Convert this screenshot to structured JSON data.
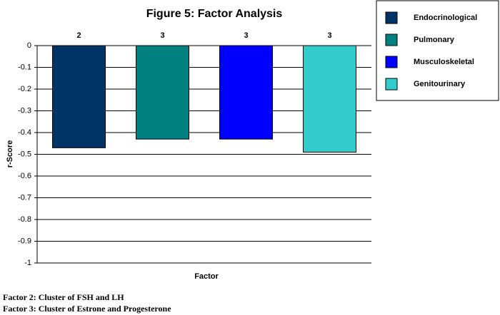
{
  "chart_data": {
    "type": "bar",
    "title": "Figure 5: Factor Analysis",
    "x_label": "Factor",
    "y_label": "r-Score",
    "categories": [
      null
    ],
    "series": [
      {
        "name": "Endocrinological",
        "color": "#003366",
        "values": [
          -0.47
        ]
      },
      {
        "name": "Pulmonary",
        "color": "#008080",
        "values": [
          -0.43
        ]
      },
      {
        "name": "Musculoskeletal",
        "color": "#0000ff",
        "values": [
          -0.43
        ]
      },
      {
        "name": "Genitourinary",
        "color": "#33cccc",
        "values": [
          -0.49
        ]
      }
    ],
    "bar_labels": [
      "2",
      "3",
      "3",
      "3"
    ],
    "ylim": [
      -1,
      0
    ],
    "yticks": [
      0,
      -0.1,
      -0.2,
      -0.3,
      -0.4,
      -0.5,
      -0.6,
      -0.7,
      -0.8,
      -0.9,
      -1
    ],
    "grid": true,
    "legend": "right",
    "footnotes": [
      "Factor 2: Cluster of FSH and LH",
      "Factor 3: Cluster of Estrone and Progesterone"
    ]
  }
}
